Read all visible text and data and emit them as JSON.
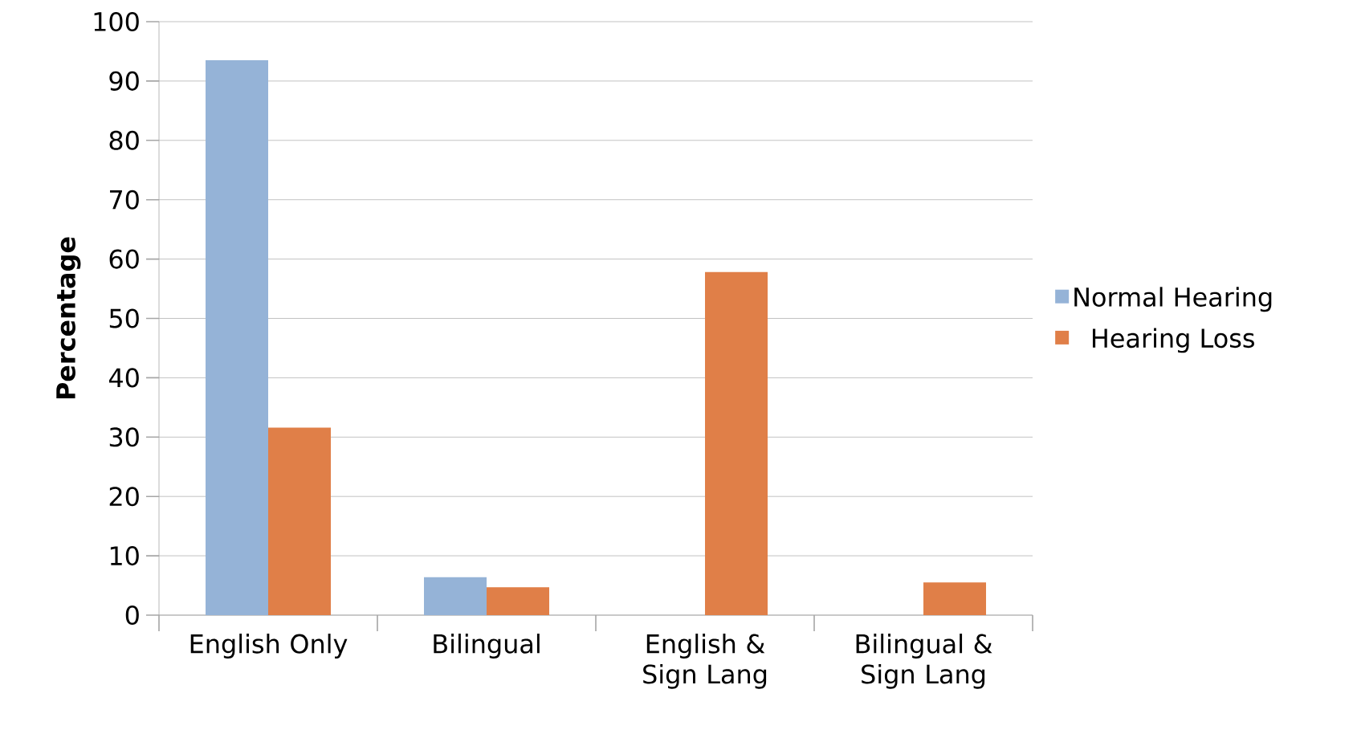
{
  "chart_data": {
    "type": "bar",
    "ylabel": "Percentage",
    "categories": [
      "English Only",
      "Bilingual",
      "English &  Sign Lang",
      "Bilingual & Sign Lang"
    ],
    "series": [
      {
        "name": "Normal Hearing",
        "color": "#95b3d7",
        "values": [
          93.5,
          6.4,
          0,
          0
        ]
      },
      {
        "name": "Hearing Loss",
        "color": "#e07f48",
        "values": [
          31.6,
          4.7,
          57.8,
          5.5
        ]
      }
    ],
    "ylim": [
      0,
      100
    ],
    "yticks": [
      0,
      10,
      20,
      30,
      40,
      50,
      60,
      70,
      80,
      90,
      100
    ],
    "grid": "y",
    "legend": "right"
  }
}
